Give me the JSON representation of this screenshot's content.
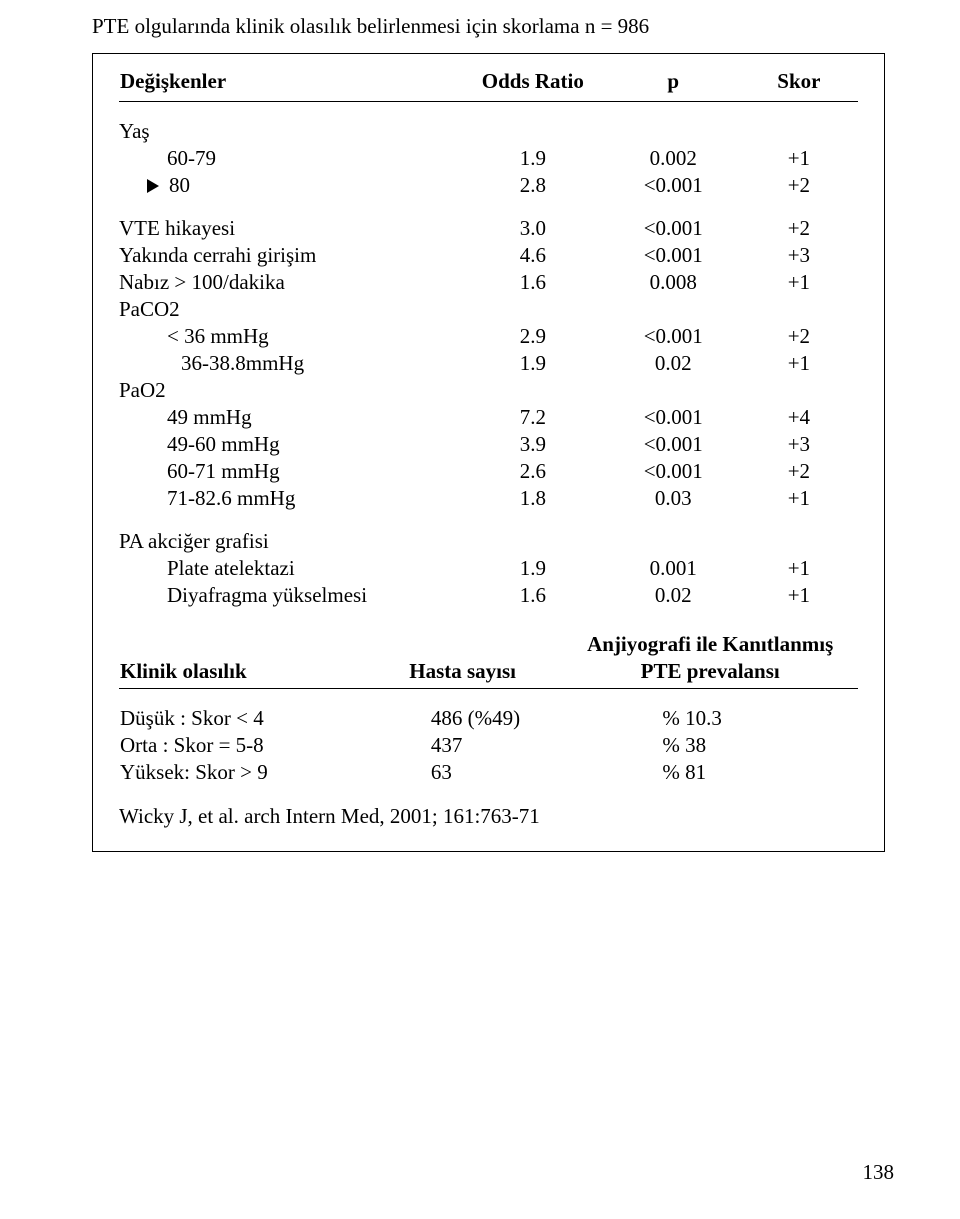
{
  "title": "PTE olgularında klinik olasılık belirlenmesi için skorlama  n = 986",
  "main_table": {
    "headers": {
      "c1": "Değişkenler",
      "c2": "Odds Ratio",
      "c3": "p",
      "c4": "Skor"
    },
    "groups": [
      {
        "label": "Yaş",
        "rows": [
          {
            "label": "60-79",
            "indent": "lvl1",
            "or": "1.9",
            "p": "0.002",
            "skor": "+1"
          },
          {
            "label": "80",
            "bullet": true,
            "or": "2.8",
            "p": "<0.001",
            "skor": "+2"
          }
        ]
      },
      {
        "rows": [
          {
            "label": "VTE hikayesi",
            "indent": "lvl0",
            "or": "3.0",
            "p": "<0.001",
            "skor": "+2"
          },
          {
            "label": "Yakında cerrahi girişim",
            "indent": "lvl0",
            "or": "4.6",
            "p": "<0.001",
            "skor": "+3"
          },
          {
            "label": "Nabız > 100/dakika",
            "indent": "lvl0",
            "or": "1.6",
            "p": "0.008",
            "skor": "+1"
          }
        ]
      },
      {
        "label": "PaCO2",
        "rows": [
          {
            "label": "< 36 mmHg",
            "indent": "lvl1",
            "or": "2.9",
            "p": "<0.001",
            "skor": "+2"
          },
          {
            "label": "36-38.8mmHg",
            "indent": "lvl1b",
            "or": "1.9",
            "p": "0.02",
            "skor": "+1"
          }
        ]
      },
      {
        "label": "PaO2",
        "rows": [
          {
            "label": "49 mmHg",
            "indent": "lvl1",
            "or": "7.2",
            "p": "<0.001",
            "skor": "+4"
          },
          {
            "label": "49-60 mmHg",
            "indent": "lvl1",
            "or": "3.9",
            "p": "<0.001",
            "skor": "+3"
          },
          {
            "label": "60-71 mmHg",
            "indent": "lvl1",
            "or": "2.6",
            "p": "<0.001",
            "skor": "+2"
          },
          {
            "label": "71-82.6 mmHg",
            "indent": "lvl1",
            "or": "1.8",
            "p": "0.03",
            "skor": "+1"
          }
        ]
      },
      {
        "label": "PA akciğer grafisi",
        "rows": [
          {
            "label": "Plate atelektazi",
            "indent": "lvl1",
            "or": "1.9",
            "p": "0.001",
            "skor": "+1"
          },
          {
            "label": "Diyafragma yükselmesi",
            "indent": "lvl1",
            "or": "1.6",
            "p": "0.02",
            "skor": "+1"
          }
        ]
      }
    ]
  },
  "sub_table": {
    "headers": {
      "c1": "Klinik olasılık",
      "c2": "Hasta sayısı",
      "c3a": "Anjiyografi ile Kanıtlanmış",
      "c3b": "PTE prevalansı"
    },
    "rows": [
      {
        "label": "Düşük  : Skor < 4",
        "n": "486 (%49)",
        "prev": "% 10.3"
      },
      {
        "label": "Orta     : Skor = 5-8",
        "n": "437",
        "prev": "% 38"
      },
      {
        "label": "Yüksek: Skor > 9",
        "n": "63",
        "prev": "% 81"
      }
    ]
  },
  "reference": "Wicky  J, et al. arch Intern Med, 2001; 161:763-71",
  "page_number": "138"
}
